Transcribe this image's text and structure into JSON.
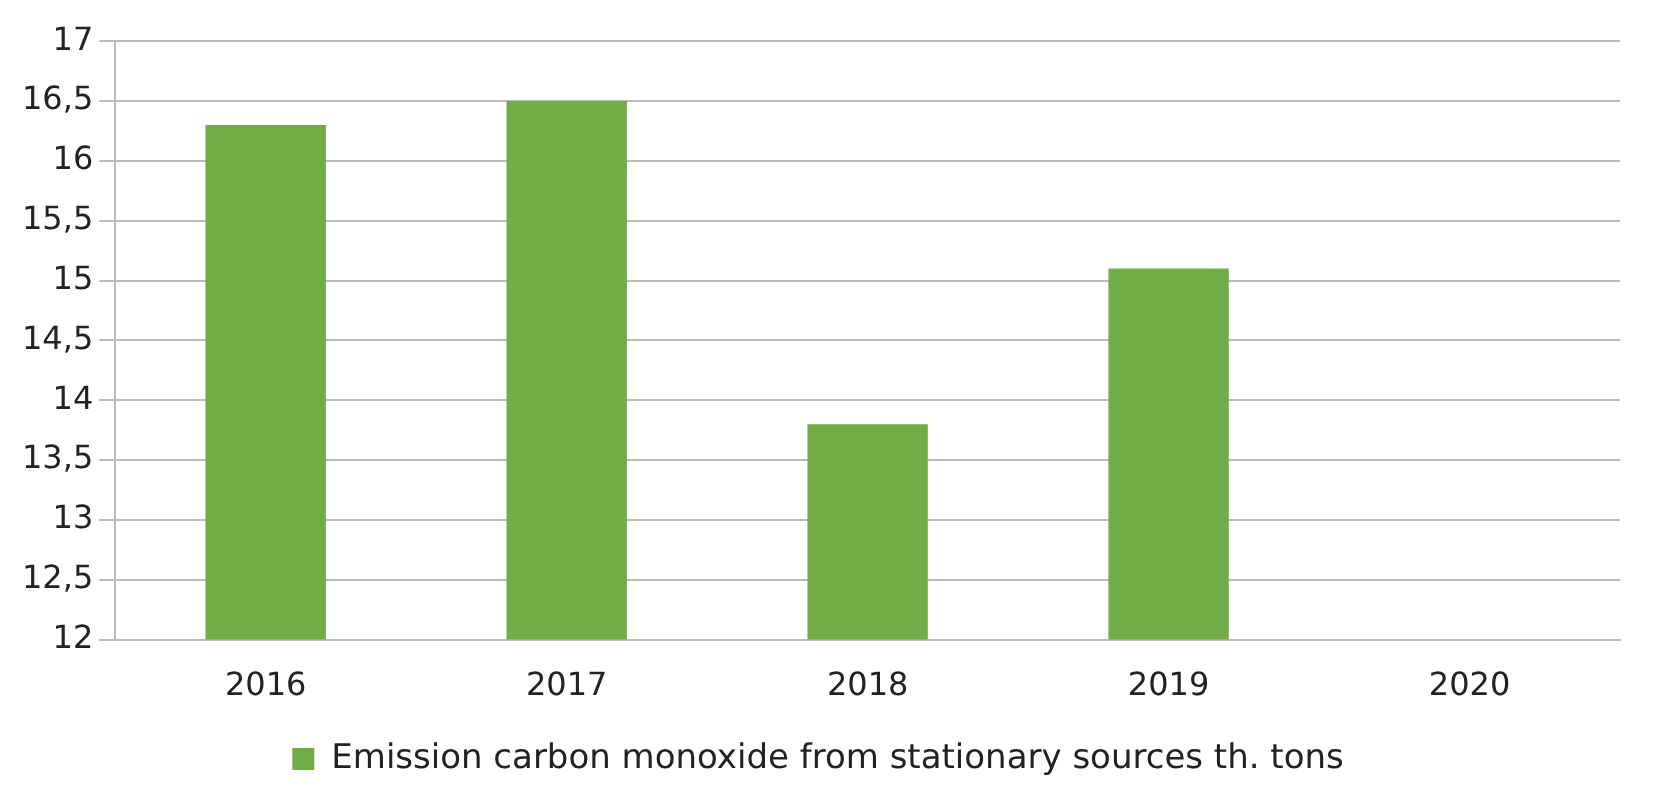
{
  "chart_data": {
    "type": "bar",
    "categories": [
      "2016",
      "2017",
      "2018",
      "2019",
      "2020"
    ],
    "series": [
      {
        "name": "Emission carbon monoxide from stationary sources th. tons",
        "color": "#70ad47",
        "values": [
          16.3,
          16.5,
          13.8,
          15.1,
          null
        ]
      }
    ],
    "ylim": [
      12,
      17
    ],
    "yticks": [
      12,
      {
        "value": 12.5,
        "label": "12,5"
      },
      13,
      {
        "value": 13.5,
        "label": "13,5"
      },
      14,
      {
        "value": 14.5,
        "label": "14,5"
      },
      15,
      {
        "value": 15.5,
        "label": "15,5"
      },
      16,
      {
        "value": 16.5,
        "label": "16,5"
      },
      17
    ],
    "grid": "y",
    "legend": "bottom"
  }
}
